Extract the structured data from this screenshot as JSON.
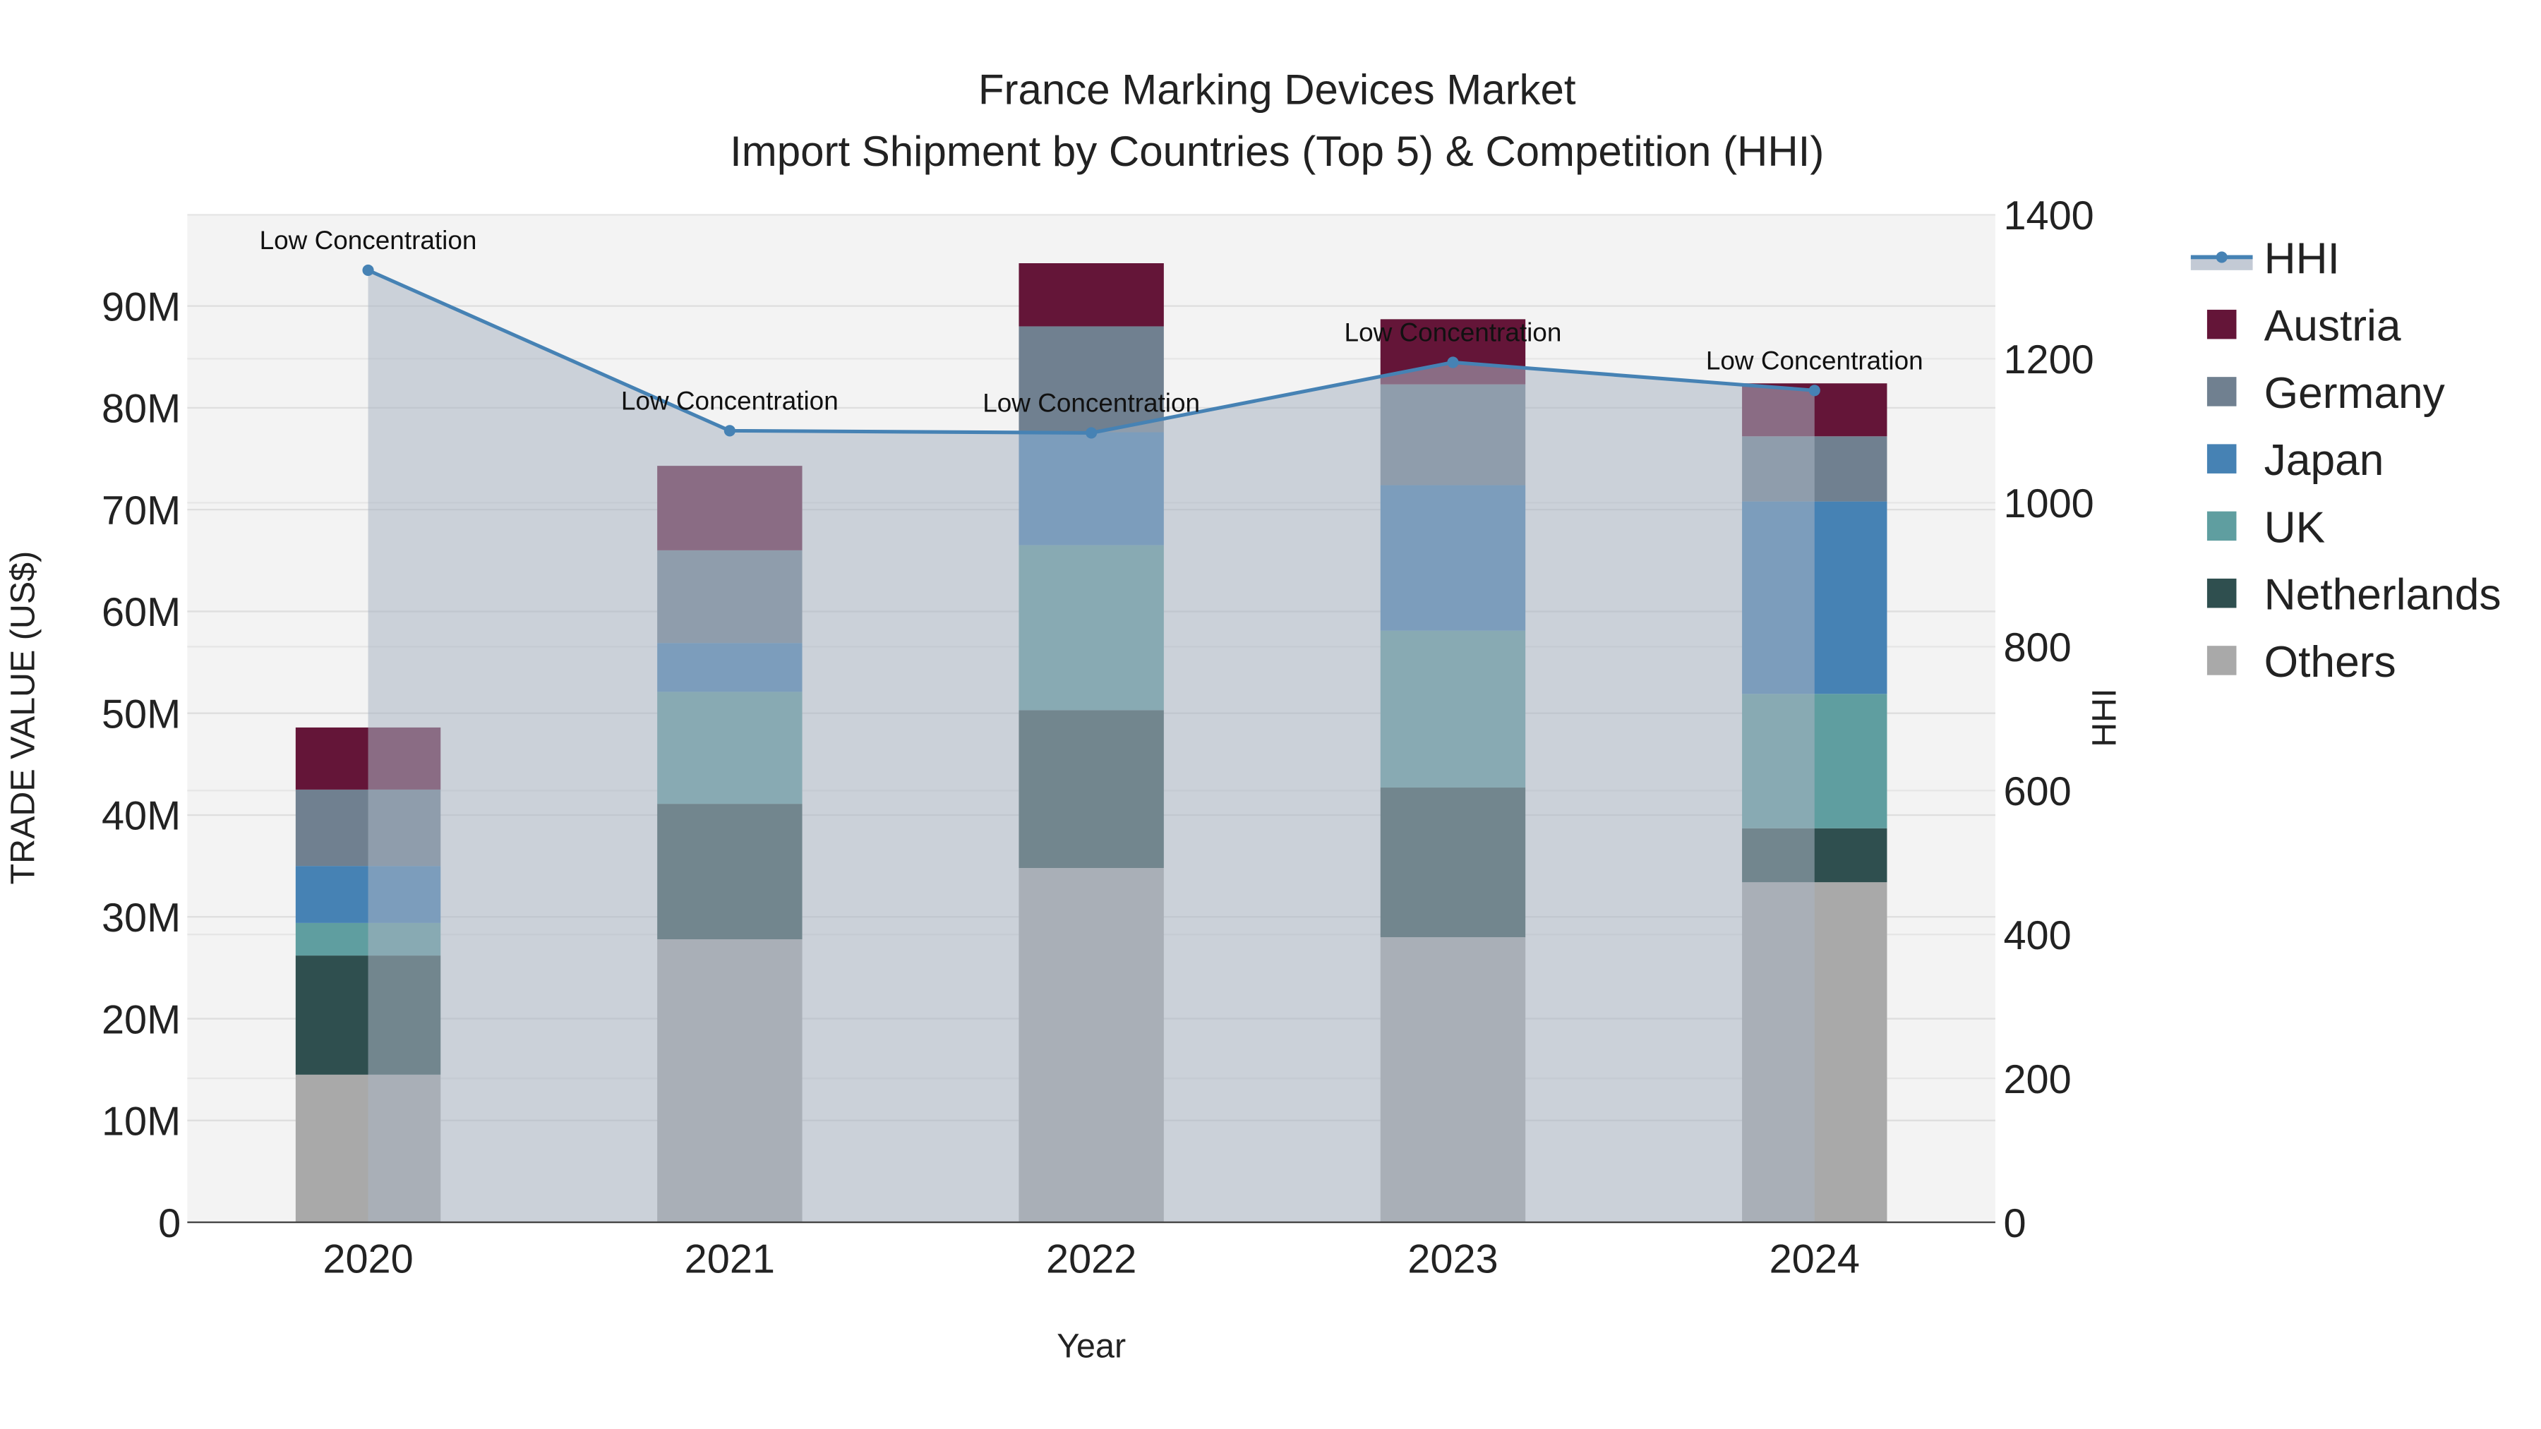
{
  "chart_data": {
    "type": "bar",
    "title": "France Marking Devices Market",
    "subtitle": "Import Shipment by Countries (Top 5) & Competition (HHI)",
    "xlabel": "Year",
    "ylabel": "TRADE VALUE (US$)",
    "y2label": "HHI",
    "categories": [
      "2020",
      "2021",
      "2022",
      "2023",
      "2024"
    ],
    "ylim": [
      0,
      99
    ],
    "y_ticks": [
      0,
      10,
      20,
      30,
      40,
      50,
      60,
      70,
      80,
      90
    ],
    "y_tick_labels": [
      "0",
      "10M",
      "20M",
      "30M",
      "40M",
      "50M",
      "60M",
      "70M",
      "80M",
      "90M"
    ],
    "y2lim": [
      0,
      1400
    ],
    "y2_ticks": [
      0,
      200,
      400,
      600,
      800,
      1000,
      1200,
      1400
    ],
    "y2_tick_labels": [
      "0",
      "200",
      "400",
      "600",
      "800",
      "1000",
      "1200",
      "1400"
    ],
    "units": "million US$",
    "stacked": true,
    "series": [
      {
        "name": "Others",
        "color": "#a9a9a9",
        "values": [
          14.5,
          27.8,
          34.8,
          28.0,
          33.4
        ]
      },
      {
        "name": "Netherlands",
        "color": "#2f4f4f",
        "values": [
          11.7,
          13.3,
          15.5,
          14.7,
          5.3
        ]
      },
      {
        "name": "UK",
        "color": "#5f9ea0",
        "values": [
          3.2,
          11.0,
          16.2,
          15.4,
          13.2
        ]
      },
      {
        "name": "Japan",
        "color": "#4682b4",
        "values": [
          5.6,
          4.8,
          11.1,
          14.3,
          18.9
        ]
      },
      {
        "name": "Germany",
        "color": "#708090",
        "values": [
          7.5,
          9.1,
          10.4,
          9.9,
          6.4
        ]
      },
      {
        "name": "Austria",
        "color": "#641538",
        "values": [
          6.1,
          8.3,
          6.2,
          6.4,
          5.2
        ]
      }
    ],
    "hhi": {
      "name": "HHI",
      "color": "#4682b4",
      "values": [
        1323,
        1100,
        1097,
        1195,
        1156
      ],
      "annotations": [
        "Low Concentration",
        "Low Concentration",
        "Low Concentration",
        "Low Concentration",
        "Low Concentration"
      ]
    },
    "legend": {
      "placement": "right",
      "entries": [
        "HHI",
        "Austria",
        "Germany",
        "Japan",
        "UK",
        "Netherlands",
        "Others"
      ]
    },
    "grid": true
  }
}
